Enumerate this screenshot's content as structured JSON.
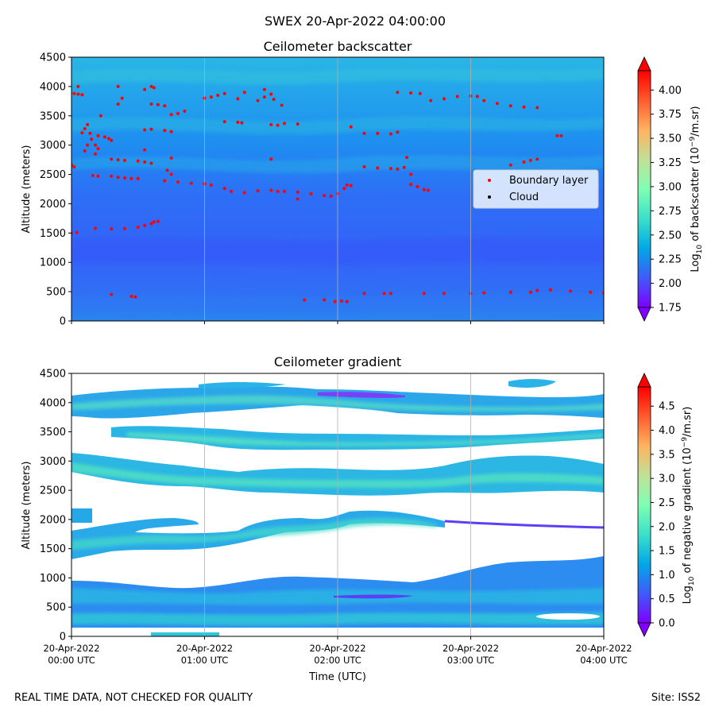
{
  "suptitle": "SWEX 20-Apr-2022 04:00:00",
  "footer": {
    "left": "REAL TIME DATA, NOT CHECKED FOR QUALITY",
    "right": "Site: ISS2"
  },
  "chart_data": [
    {
      "type": "heatmap",
      "title": "Ceilometer backscatter",
      "xlabel": "",
      "ylabel": "Altitude (meters)",
      "ylim": [
        0,
        4500
      ],
      "yticks": [
        0,
        500,
        1000,
        1500,
        2000,
        2500,
        3000,
        3500,
        4000,
        4500
      ],
      "xlim_hours": [
        0,
        4
      ],
      "colorbar": {
        "label": "Log$_{10}$ of backscatter (10$^{-9}$/m.sr)",
        "label_main": "Log",
        "label_sub": "10",
        "label_mid": " of backscatter (10",
        "label_sup": "−9",
        "label_end": "/m.sr)",
        "vmin": 1.75,
        "vmax": 4.2,
        "ticks": [
          "1.75",
          "2.00",
          "2.25",
          "2.50",
          "2.75",
          "3.00",
          "3.25",
          "3.50",
          "3.75",
          "4.00"
        ],
        "tick_values": [
          1.75,
          2.0,
          2.25,
          2.5,
          2.75,
          3.0,
          3.25,
          3.5,
          3.75,
          4.0
        ]
      },
      "legend": {
        "position": "center-right",
        "entries": [
          {
            "label": "Boundary layer",
            "color": "#ff0000"
          },
          {
            "label": "Cloud",
            "color": "#000000"
          }
        ]
      },
      "series": [
        {
          "name": "Boundary layer",
          "points_time_hours_altitude_m": [
            [
              0.0,
              2660
            ],
            [
              0.02,
              2630
            ],
            [
              0.04,
              1510
            ],
            [
              0.0,
              1500
            ],
            [
              0.02,
              3880
            ],
            [
              0.05,
              3870
            ],
            [
              0.08,
              3860
            ],
            [
              0.05,
              4000
            ],
            [
              0.08,
              3210
            ],
            [
              0.1,
              3280
            ],
            [
              0.12,
              3350
            ],
            [
              0.14,
              3200
            ],
            [
              0.1,
              2900
            ],
            [
              0.12,
              3000
            ],
            [
              0.15,
              3100
            ],
            [
              0.18,
              3000
            ],
            [
              0.2,
              2940
            ],
            [
              0.22,
              3500
            ],
            [
              0.18,
              2850
            ],
            [
              0.16,
              2480
            ],
            [
              0.2,
              2470
            ],
            [
              0.2,
              3160
            ],
            [
              0.25,
              3140
            ],
            [
              0.28,
              3110
            ],
            [
              0.3,
              3080
            ],
            [
              0.3,
              2470
            ],
            [
              0.35,
              2450
            ],
            [
              0.4,
              2440
            ],
            [
              0.45,
              2430
            ],
            [
              0.5,
              2430
            ],
            [
              0.3,
              2760
            ],
            [
              0.35,
              2750
            ],
            [
              0.4,
              2740
            ],
            [
              0.5,
              2730
            ],
            [
              0.55,
              2710
            ],
            [
              0.6,
              2690
            ],
            [
              0.35,
              3700
            ],
            [
              0.38,
              3800
            ],
            [
              0.35,
              4000
            ],
            [
              0.55,
              2920
            ],
            [
              0.18,
              1580
            ],
            [
              0.3,
              1570
            ],
            [
              0.4,
              1575
            ],
            [
              0.5,
              1600
            ],
            [
              0.55,
              1630
            ],
            [
              0.6,
              1660
            ],
            [
              0.62,
              1690
            ],
            [
              0.65,
              1700
            ],
            [
              0.3,
              450
            ],
            [
              0.45,
              420
            ],
            [
              0.48,
              410
            ],
            [
              0.55,
              3950
            ],
            [
              0.6,
              4000
            ],
            [
              0.62,
              3980
            ],
            [
              0.6,
              3700
            ],
            [
              0.65,
              3690
            ],
            [
              0.7,
              3670
            ],
            [
              0.55,
              3260
            ],
            [
              0.6,
              3270
            ],
            [
              0.7,
              3250
            ],
            [
              0.75,
              3230
            ],
            [
              0.75,
              2780
            ],
            [
              0.7,
              2390
            ],
            [
              0.8,
              2370
            ],
            [
              0.9,
              2350
            ],
            [
              1.0,
              2340
            ],
            [
              1.05,
              2320
            ],
            [
              0.75,
              2500
            ],
            [
              0.72,
              2570
            ],
            [
              0.75,
              3520
            ],
            [
              0.8,
              3540
            ],
            [
              0.85,
              3580
            ],
            [
              1.0,
              3800
            ],
            [
              1.05,
              3820
            ],
            [
              1.1,
              3850
            ],
            [
              1.15,
              3880
            ],
            [
              1.3,
              3900
            ],
            [
              1.25,
              3790
            ],
            [
              1.15,
              2260
            ],
            [
              1.2,
              2210
            ],
            [
              1.3,
              2190
            ],
            [
              1.4,
              2220
            ],
            [
              1.5,
              2230
            ],
            [
              1.55,
              2210
            ],
            [
              1.15,
              3400
            ],
            [
              1.25,
              3390
            ],
            [
              1.28,
              3380
            ],
            [
              1.4,
              3760
            ],
            [
              1.45,
              3820
            ],
            [
              1.5,
              3870
            ],
            [
              1.52,
              3780
            ],
            [
              1.45,
              3950
            ],
            [
              1.58,
              3680
            ],
            [
              1.5,
              3350
            ],
            [
              1.55,
              3340
            ],
            [
              1.6,
              3370
            ],
            [
              1.7,
              3360
            ],
            [
              1.5,
              2760
            ],
            [
              1.6,
              2210
            ],
            [
              1.7,
              2200
            ],
            [
              1.8,
              2170
            ],
            [
              1.9,
              2140
            ],
            [
              1.95,
              2130
            ],
            [
              2.0,
              2170
            ],
            [
              2.05,
              2260
            ],
            [
              2.1,
              2310
            ],
            [
              2.07,
              2320
            ],
            [
              1.7,
              2080
            ],
            [
              1.75,
              360
            ],
            [
              1.9,
              360
            ],
            [
              1.98,
              330
            ],
            [
              2.03,
              340
            ],
            [
              2.07,
              330
            ],
            [
              2.1,
              3310
            ],
            [
              2.2,
              470
            ],
            [
              2.35,
              470
            ],
            [
              2.4,
              470
            ],
            [
              2.2,
              3200
            ],
            [
              2.3,
              3200
            ],
            [
              2.4,
              3190
            ],
            [
              2.45,
              3220
            ],
            [
              2.2,
              2630
            ],
            [
              2.3,
              2610
            ],
            [
              2.4,
              2600
            ],
            [
              2.45,
              2590
            ],
            [
              2.5,
              2620
            ],
            [
              2.52,
              2790
            ],
            [
              2.55,
              2500
            ],
            [
              2.55,
              2330
            ],
            [
              2.6,
              2290
            ],
            [
              2.65,
              2240
            ],
            [
              2.68,
              2230
            ],
            [
              2.45,
              3900
            ],
            [
              2.55,
              3890
            ],
            [
              2.62,
              3880
            ],
            [
              2.7,
              3760
            ],
            [
              2.8,
              3790
            ],
            [
              2.9,
              3830
            ],
            [
              3.0,
              3840
            ],
            [
              3.05,
              3830
            ],
            [
              3.1,
              3760
            ],
            [
              3.2,
              3710
            ],
            [
              3.3,
              3670
            ],
            [
              3.4,
              3650
            ],
            [
              3.5,
              3640
            ],
            [
              2.65,
              470
            ],
            [
              2.8,
              470
            ],
            [
              3.0,
              470
            ],
            [
              3.1,
              480
            ],
            [
              3.3,
              490
            ],
            [
              3.45,
              490
            ],
            [
              3.5,
              520
            ],
            [
              3.6,
              530
            ],
            [
              3.75,
              510
            ],
            [
              3.9,
              490
            ],
            [
              4.0,
              480
            ],
            [
              3.3,
              2660
            ],
            [
              3.4,
              2710
            ],
            [
              3.45,
              2740
            ],
            [
              3.5,
              2760
            ],
            [
              3.65,
              3160
            ],
            [
              3.68,
              3160
            ]
          ]
        },
        {
          "name": "Cloud",
          "points_time_hours_altitude_m": []
        }
      ]
    },
    {
      "type": "heatmap",
      "title": "Ceilometer gradient",
      "xlabel": "Time (UTC)",
      "ylabel": "Altitude (meters)",
      "ylim": [
        0,
        4500
      ],
      "yticks": [
        0,
        500,
        1000,
        1500,
        2000,
        2500,
        3000,
        3500,
        4000,
        4500
      ],
      "xlim_hours": [
        0,
        4
      ],
      "xticks": [
        {
          "hour": 0,
          "line1": "20-Apr-2022",
          "line2": "00:00 UTC"
        },
        {
          "hour": 1,
          "line1": "20-Apr-2022",
          "line2": "01:00 UTC"
        },
        {
          "hour": 2,
          "line1": "20-Apr-2022",
          "line2": "02:00 UTC"
        },
        {
          "hour": 3,
          "line1": "20-Apr-2022",
          "line2": "03:00 UTC"
        },
        {
          "hour": 4,
          "line1": "20-Apr-2022",
          "line2": "04:00 UTC"
        }
      ],
      "colorbar": {
        "label": "Log$_{10}$ of negative gradient (10$^{-9}$/m.sr)",
        "label_main": "Log",
        "label_sub": "10",
        "label_mid": " of negative gradient (10",
        "label_sup": "−9",
        "label_end": "/m.sr)",
        "vmin": 0.0,
        "vmax": 4.9,
        "ticks": [
          "0.0",
          "0.5",
          "1.0",
          "1.5",
          "2.0",
          "2.5",
          "3.0",
          "3.5",
          "4.0",
          "4.5"
        ],
        "tick_values": [
          0.0,
          0.5,
          1.0,
          1.5,
          2.0,
          2.5,
          3.0,
          3.5,
          4.0,
          4.5
        ]
      },
      "layers_approx": [
        {
          "altitude_range_m": [
            150,
            950
          ],
          "value": 1.2
        },
        {
          "altitude_range_m": [
            1350,
            2000
          ],
          "value": 1.3
        },
        {
          "altitude_range_m": [
            2400,
            3100
          ],
          "value": 1.5
        },
        {
          "altitude_range_m": [
            3300,
            3600
          ],
          "value": 1.6
        },
        {
          "altitude_range_m": [
            3800,
            4300
          ],
          "value": 1.4
        }
      ]
    }
  ]
}
